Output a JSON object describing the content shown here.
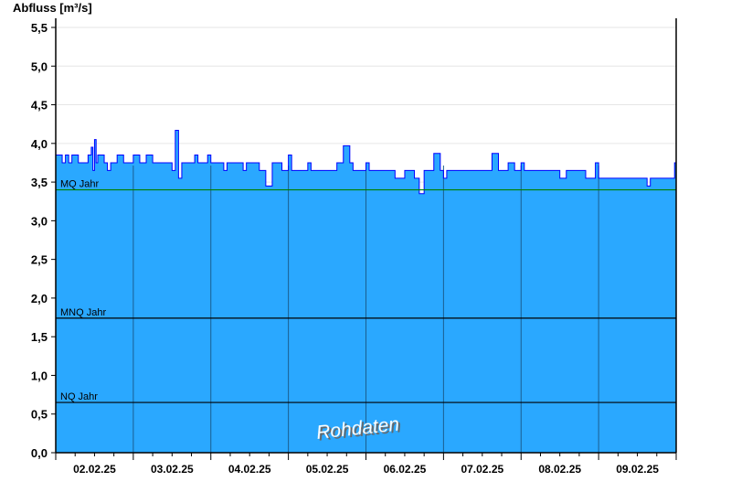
{
  "chart_data": {
    "type": "area",
    "title": "",
    "ylabel": "Abfluss [m³/s]",
    "xlabel": "",
    "ylim": [
      0,
      5.5
    ],
    "xlim": [
      "02.02.25 00:00",
      "10.02.25 00:00"
    ],
    "yticks": [
      "0,0",
      "0,5",
      "1,0",
      "1,5",
      "2,0",
      "2,5",
      "3,0",
      "3,5",
      "4,0",
      "4,5",
      "5,0",
      "5,5"
    ],
    "xticks": [
      "02.02.25",
      "03.02.25",
      "04.02.25",
      "05.02.25",
      "06.02.25",
      "07.02.25",
      "08.02.25",
      "09.02.25"
    ],
    "grid": true,
    "colors": {
      "fill": "#2aa8ff",
      "line": "#0000ff",
      "mq": "#008000",
      "ref": "#000000"
    },
    "reference_lines": [
      {
        "name": "MQ Jahr",
        "value": 3.4
      },
      {
        "name": "MNQ Jahr",
        "value": 1.74
      },
      {
        "name": "NQ Jahr",
        "value": 0.65
      }
    ],
    "watermark": "Rohdaten",
    "series": [
      {
        "points": [
          [
            "02.02.25 00:00",
            3.85
          ],
          [
            "02.02.25 02:00",
            3.75
          ],
          [
            "02.02.25 03:00",
            3.85
          ],
          [
            "02.02.25 04:00",
            3.75
          ],
          [
            "02.02.25 05:00",
            3.85
          ],
          [
            "02.02.25 07:00",
            3.75
          ],
          [
            "02.02.25 10:00",
            3.85
          ],
          [
            "02.02.25 11:00",
            3.95
          ],
          [
            "02.02.25 11:30",
            3.65
          ],
          [
            "02.02.25 12:00",
            4.05
          ],
          [
            "02.02.25 12:30",
            3.75
          ],
          [
            "02.02.25 13:00",
            3.85
          ],
          [
            "02.02.25 15:00",
            3.75
          ],
          [
            "02.02.25 16:00",
            3.65
          ],
          [
            "02.02.25 17:00",
            3.75
          ],
          [
            "02.02.25 19:00",
            3.85
          ],
          [
            "02.02.25 21:00",
            3.75
          ],
          [
            "03.02.25 00:00",
            3.85
          ],
          [
            "03.02.25 02:00",
            3.75
          ],
          [
            "03.02.25 04:00",
            3.85
          ],
          [
            "03.02.25 06:00",
            3.75
          ],
          [
            "03.02.25 12:00",
            3.65
          ],
          [
            "03.02.25 13:00",
            4.17
          ],
          [
            "03.02.25 14:00",
            3.55
          ],
          [
            "03.02.25 15:00",
            3.75
          ],
          [
            "03.02.25 19:00",
            3.85
          ],
          [
            "03.02.25 20:00",
            3.75
          ],
          [
            "03.02.25 23:00",
            3.85
          ],
          [
            "04.02.25 00:00",
            3.75
          ],
          [
            "04.02.25 04:00",
            3.65
          ],
          [
            "04.02.25 05:00",
            3.75
          ],
          [
            "04.02.25 10:00",
            3.65
          ],
          [
            "04.02.25 11:00",
            3.75
          ],
          [
            "04.02.25 15:00",
            3.65
          ],
          [
            "04.02.25 17:00",
            3.45
          ],
          [
            "04.02.25 19:00",
            3.75
          ],
          [
            "04.02.25 22:00",
            3.65
          ],
          [
            "05.02.25 00:00",
            3.85
          ],
          [
            "05.02.25 01:00",
            3.65
          ],
          [
            "05.02.25 06:00",
            3.75
          ],
          [
            "05.02.25 07:00",
            3.65
          ],
          [
            "05.02.25 15:00",
            3.75
          ],
          [
            "05.02.25 17:00",
            3.97
          ],
          [
            "05.02.25 19:00",
            3.75
          ],
          [
            "05.02.25 20:00",
            3.65
          ],
          [
            "06.02.25 00:00",
            3.75
          ],
          [
            "06.02.25 01:00",
            3.65
          ],
          [
            "06.02.25 09:00",
            3.55
          ],
          [
            "06.02.25 12:00",
            3.65
          ],
          [
            "06.02.25 15:00",
            3.55
          ],
          [
            "06.02.25 16:30",
            3.35
          ],
          [
            "06.02.25 18:00",
            3.65
          ],
          [
            "06.02.25 21:00",
            3.87
          ],
          [
            "06.02.25 23:00",
            3.65
          ],
          [
            "07.02.25 00:00",
            3.55
          ],
          [
            "07.02.25 01:00",
            3.65
          ],
          [
            "07.02.25 15:00",
            3.87
          ],
          [
            "07.02.25 17:00",
            3.65
          ],
          [
            "07.02.25 20:00",
            3.75
          ],
          [
            "07.02.25 22:00",
            3.65
          ],
          [
            "08.02.25 00:00",
            3.75
          ],
          [
            "08.02.25 01:00",
            3.65
          ],
          [
            "08.02.25 12:00",
            3.55
          ],
          [
            "08.02.25 14:00",
            3.65
          ],
          [
            "08.02.25 20:00",
            3.55
          ],
          [
            "08.02.25 23:00",
            3.75
          ],
          [
            "09.02.25 00:00",
            3.55
          ],
          [
            "09.02.25 14:00",
            3.55
          ],
          [
            "09.02.25 15:00",
            3.45
          ],
          [
            "09.02.25 16:00",
            3.55
          ],
          [
            "09.02.25 23:30",
            3.75
          ],
          [
            "10.02.25 00:00",
            3.75
          ]
        ]
      }
    ]
  }
}
